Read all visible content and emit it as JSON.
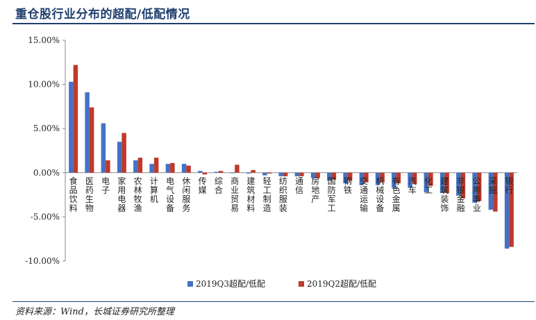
{
  "header": {
    "title": "重仓股行业分布的超配/低配情况"
  },
  "footer": {
    "source": "资料来源：Wind，长城证券研究所整理"
  },
  "colors": {
    "q3": "#4472c4",
    "q2": "#c0392b",
    "title": "#1f3f6e"
  },
  "chart_data": {
    "type": "bar",
    "ylim": [
      -10,
      15
    ],
    "yticks": [
      "15.00%",
      "10.00%",
      "5.00%",
      "0.00%",
      "-5.00%",
      "-10.00%"
    ],
    "grid": false,
    "legend_position": "bottom",
    "categories": [
      "食品饮料",
      "医药生物",
      "电子",
      "家用电器",
      "农林牧渔",
      "计算机",
      "电气设备",
      "休闲服务",
      "传媒",
      "综合",
      "商业贸易",
      "建筑材料",
      "轻工制造",
      "纺织服装",
      "通信",
      "房地产",
      "国防军工",
      "钢铁",
      "交通运输",
      "机械设备",
      "有色金属",
      "汽车",
      "化工",
      "建筑装饰",
      "非银金融",
      "公用事业",
      "采掘",
      "银行"
    ],
    "series": [
      {
        "name": "2019Q3超配/低配",
        "values": [
          10.3,
          9.1,
          5.6,
          3.5,
          1.4,
          1.0,
          1.0,
          1.0,
          0.2,
          0.1,
          0.0,
          -0.1,
          -0.3,
          -0.4,
          -0.4,
          -0.6,
          -0.9,
          -1.2,
          -1.4,
          -1.4,
          -1.7,
          -1.7,
          -2.2,
          -2.3,
          -2.6,
          -3.4,
          -4.2,
          -8.6
        ]
      },
      {
        "name": "2019Q2超配/低配",
        "values": [
          12.2,
          7.4,
          1.4,
          4.5,
          1.7,
          1.7,
          1.1,
          0.8,
          -0.2,
          0.2,
          0.9,
          0.3,
          -0.1,
          -0.4,
          -0.4,
          -0.6,
          -0.8,
          -0.9,
          -1.1,
          -1.1,
          -1.2,
          -1.3,
          -1.5,
          -2.3,
          -2.9,
          -3.2,
          -4.4,
          -8.4
        ]
      }
    ]
  }
}
